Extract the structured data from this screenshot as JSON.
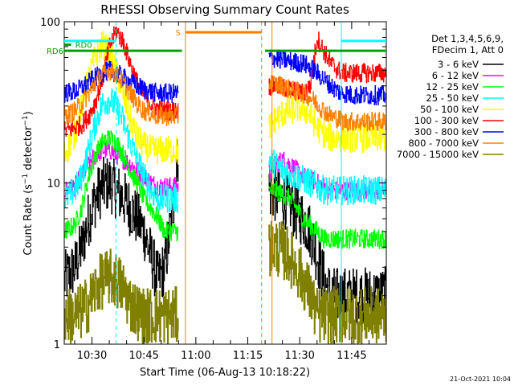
{
  "chart_data": {
    "type": "line",
    "title": "RHESSI Observing Summary Count Rates",
    "xlabel": "Start Time (06-Aug-13 10:18:22)",
    "ylabel": "Count Rate (s⁻¹ detector⁻¹)",
    "ylabel_parts": [
      "Count Rate (s",
      "−1",
      " detector",
      "−1",
      ")"
    ],
    "y_scale": "log",
    "xlim": [
      "10:22",
      "11:55"
    ],
    "ylim": [
      1,
      100
    ],
    "x_ticks": [
      "10:30",
      "10:45",
      "11:00",
      "11:15",
      "11:30",
      "11:45"
    ],
    "y_ticks": [
      "1",
      "10",
      "100"
    ],
    "grid": false,
    "legend_position": "right",
    "legend_header": [
      "Det 1,3,4,5,6,9,",
      "FDecim 1, Att 0"
    ],
    "timestamp": "21-Oct-2021 10:04",
    "data_gap": [
      "10:56",
      "11:20"
    ],
    "series": [
      {
        "name": "3 - 6 keV",
        "color": "#000000",
        "x": [
          "10:22",
          "10:25",
          "10:27",
          "10:29",
          "10:31",
          "10:33",
          "10:35",
          "10:37",
          "10:39",
          "10:41",
          "10:43",
          "10:45",
          "10:47",
          "10:49",
          "10:51",
          "10:53",
          "10:55",
          "11:21",
          "11:23",
          "11:25",
          "11:27",
          "11:29",
          "11:31",
          "11:33",
          "11:35",
          "11:37",
          "11:39",
          "11:41",
          "11:43",
          "11:45",
          "11:47",
          "11:49",
          "11:51",
          "11:53",
          "11:55"
        ],
        "y": [
          2.5,
          3,
          4,
          6,
          8,
          9.5,
          10,
          9,
          8,
          7,
          6,
          5,
          3.5,
          2.5,
          3,
          6,
          17,
          9,
          8.5,
          8,
          7.5,
          6.5,
          6,
          5,
          3.5,
          2.5,
          2,
          2,
          2,
          2,
          2,
          2,
          2,
          2,
          2
        ]
      },
      {
        "name": "6 - 12 keV",
        "color": "#ff00ff",
        "x": [
          "10:22",
          "10:25",
          "10:27",
          "10:29",
          "10:31",
          "10:33",
          "10:35",
          "10:37",
          "10:39",
          "10:41",
          "10:43",
          "10:45",
          "10:47",
          "10:49",
          "10:51",
          "10:53",
          "10:55",
          "11:21",
          "11:23",
          "11:25",
          "11:27",
          "11:29",
          "11:31",
          "11:33",
          "11:35",
          "11:37",
          "11:39",
          "11:41",
          "11:43",
          "11:45",
          "11:47",
          "11:49",
          "11:51",
          "11:53",
          "11:55"
        ],
        "y": [
          9,
          9.5,
          11,
          13,
          15,
          16,
          16,
          15,
          14,
          13,
          12,
          11,
          10,
          9.5,
          9.5,
          9.5,
          9.5,
          12,
          13,
          14,
          13,
          12,
          11,
          10.5,
          10,
          9.5,
          9,
          9,
          9,
          9,
          9,
          9,
          9,
          9,
          9
        ]
      },
      {
        "name": "12 - 25 keV",
        "color": "#00ff00",
        "x": [
          "10:22",
          "10:25",
          "10:27",
          "10:29",
          "10:31",
          "10:33",
          "10:35",
          "10:37",
          "10:39",
          "10:41",
          "10:43",
          "10:45",
          "10:47",
          "10:49",
          "10:51",
          "10:53",
          "10:55",
          "11:21",
          "11:23",
          "11:25",
          "11:27",
          "11:29",
          "11:31",
          "11:33",
          "11:35",
          "11:37",
          "11:39",
          "11:41",
          "11:43",
          "11:45",
          "11:47",
          "11:49",
          "11:51",
          "11:53",
          "11:55"
        ],
        "y": [
          5,
          5.5,
          7,
          11,
          15,
          18,
          19,
          18,
          15,
          12,
          10,
          8,
          7,
          6,
          5,
          5,
          5,
          9,
          9,
          8.5,
          8,
          7,
          6,
          5.5,
          5,
          4.5,
          4.5,
          4.5,
          4.5,
          4.5,
          4.5,
          4.5,
          4.5,
          4.5,
          4.5
        ]
      },
      {
        "name": "25 - 50 keV",
        "color": "#00ffff",
        "x": [
          "10:22",
          "10:25",
          "10:27",
          "10:29",
          "10:31",
          "10:33",
          "10:35",
          "10:37",
          "10:39",
          "10:41",
          "10:43",
          "10:45",
          "10:47",
          "10:49",
          "10:51",
          "10:53",
          "10:55",
          "11:21",
          "11:23",
          "11:25",
          "11:27",
          "11:29",
          "11:31",
          "11:33",
          "11:35",
          "11:37",
          "11:39",
          "11:41",
          "11:43",
          "11:45",
          "11:47",
          "11:49",
          "11:51",
          "11:53",
          "11:55"
        ],
        "y": [
          8,
          9,
          11,
          16,
          24,
          31,
          33,
          30,
          24,
          18,
          14,
          11,
          9,
          8,
          8,
          8,
          8,
          14,
          13,
          12,
          11.5,
          11,
          10.5,
          10,
          9.5,
          9,
          9,
          9,
          9,
          9,
          9,
          9,
          9,
          9,
          9
        ]
      },
      {
        "name": "50 - 100 keV",
        "color": "#ffff00",
        "x": [
          "10:22",
          "10:25",
          "10:27",
          "10:29",
          "10:31",
          "10:33",
          "10:35",
          "10:37",
          "10:39",
          "10:41",
          "10:43",
          "10:45",
          "10:47",
          "10:49",
          "10:51",
          "10:53",
          "10:55",
          "11:21",
          "11:23",
          "11:25",
          "11:27",
          "11:29",
          "11:31",
          "11:33",
          "11:35",
          "11:37",
          "11:39",
          "11:41",
          "11:43",
          "11:45",
          "11:47",
          "11:49",
          "11:51",
          "11:53",
          "11:55"
        ],
        "y": [
          15,
          20,
          30,
          45,
          62,
          72,
          65,
          50,
          35,
          25,
          19,
          17,
          16,
          16,
          16,
          16,
          16,
          22,
          25,
          27,
          28,
          29,
          29,
          26,
          22,
          20,
          19,
          19,
          19,
          19,
          19,
          19,
          19,
          19,
          19
        ]
      },
      {
        "name": "100 - 300 keV",
        "color": "#ff0000",
        "x": [
          "10:22",
          "10:25",
          "10:27",
          "10:29",
          "10:31",
          "10:33",
          "10:35",
          "10:37",
          "10:39",
          "10:41",
          "10:43",
          "10:45",
          "10:47",
          "10:49",
          "10:51",
          "10:53",
          "10:55",
          "11:21",
          "11:23",
          "11:25",
          "11:27",
          "11:29",
          "11:31",
          "11:33",
          "11:35",
          "11:37",
          "11:39",
          "11:41",
          "11:43",
          "11:45",
          "11:47",
          "11:49",
          "11:51",
          "11:53",
          "11:55"
        ],
        "y": [
          21,
          22,
          23,
          26,
          32,
          45,
          70,
          88,
          75,
          55,
          42,
          35,
          31,
          29,
          28,
          28,
          28,
          40,
          40,
          39,
          38,
          37,
          36,
          40,
          80,
          65,
          55,
          50,
          48,
          48,
          48,
          48,
          48,
          48,
          48
        ]
      },
      {
        "name": "300 - 800 keV",
        "color": "#0000ff",
        "x": [
          "10:22",
          "10:25",
          "10:27",
          "10:29",
          "10:31",
          "10:33",
          "10:35",
          "10:37",
          "10:39",
          "10:41",
          "10:43",
          "10:45",
          "10:47",
          "10:49",
          "10:51",
          "10:53",
          "10:55",
          "11:21",
          "11:23",
          "11:25",
          "11:27",
          "11:29",
          "11:31",
          "11:33",
          "11:35",
          "11:37",
          "11:39",
          "11:41",
          "11:43",
          "11:45",
          "11:47",
          "11:49",
          "11:51",
          "11:53",
          "11:55"
        ],
        "y": [
          36,
          37,
          39,
          42,
          45,
          48,
          50,
          48,
          45,
          42,
          40,
          38,
          37,
          36,
          36,
          36,
          36,
          60,
          59,
          58,
          57,
          56,
          55,
          52,
          48,
          44,
          40,
          37,
          36,
          35,
          35,
          35,
          35,
          35,
          35
        ]
      },
      {
        "name": "800 - 7000 keV",
        "color": "#ff8000",
        "x": [
          "10:22",
          "10:25",
          "10:27",
          "10:29",
          "10:31",
          "10:33",
          "10:35",
          "10:37",
          "10:39",
          "10:41",
          "10:43",
          "10:45",
          "10:47",
          "10:49",
          "10:51",
          "10:53",
          "10:55",
          "11:21",
          "11:23",
          "11:25",
          "11:27",
          "11:29",
          "11:31",
          "11:33",
          "11:35",
          "11:37",
          "11:39",
          "11:41",
          "11:43",
          "11:45",
          "11:47",
          "11:49",
          "11:51",
          "11:53",
          "11:55"
        ],
        "y": [
          26,
          28,
          31,
          36,
          42,
          47,
          50,
          47,
          42,
          36,
          31,
          28,
          27,
          26,
          26,
          26,
          26,
          42,
          41,
          40,
          38,
          37,
          36,
          34,
          31,
          28,
          26,
          25,
          24,
          24,
          24,
          24,
          24,
          24,
          24
        ]
      },
      {
        "name": "7000 - 15000 keV",
        "color": "#808000",
        "x": [
          "10:22",
          "10:25",
          "10:27",
          "10:29",
          "10:31",
          "10:33",
          "10:35",
          "10:37",
          "10:39",
          "10:41",
          "10:43",
          "10:45",
          "10:47",
          "10:49",
          "10:51",
          "10:53",
          "10:55",
          "11:21",
          "11:23",
          "11:25",
          "11:27",
          "11:29",
          "11:31",
          "11:33",
          "11:35",
          "11:37",
          "11:39",
          "11:41",
          "11:43",
          "11:45",
          "11:47",
          "11:49",
          "11:51",
          "11:53",
          "11:55"
        ],
        "y": [
          1.5,
          1.5,
          1.6,
          1.8,
          2.2,
          2.5,
          2.6,
          2.5,
          2.2,
          1.8,
          1.6,
          1.5,
          1.5,
          1.5,
          1.5,
          1.5,
          1.5,
          4,
          4,
          3.8,
          3.5,
          3,
          2.5,
          2,
          1.5,
          1.5,
          1.5,
          1.5,
          1.5,
          1.5,
          1.5,
          1.5,
          1.5,
          1.5,
          1.5
        ]
      }
    ],
    "flag_lines": [
      {
        "label": "RD0",
        "color": "#00a000",
        "y": 72,
        "segments": [
          [
            "10:22",
            "10:24"
          ]
        ]
      },
      {
        "label": "RD6",
        "color": "#00a000",
        "y": 66,
        "segments": [
          [
            "10:22",
            "10:56"
          ],
          [
            "11:20",
            "11:55"
          ]
        ]
      },
      {
        "label": "",
        "color": "#00ffff",
        "y": 76,
        "segments": [
          [
            "10:22",
            "10:37"
          ],
          [
            "11:42",
            "11:55"
          ]
        ]
      },
      {
        "label": "S",
        "color": "#ff8000",
        "y": 86,
        "segments": [
          [
            "10:57",
            "11:19"
          ]
        ]
      }
    ],
    "vertical_markers": [
      {
        "x": "10:37",
        "color": "#00ffff",
        "style": "dashed"
      },
      {
        "x": "10:57",
        "color": "#ff8000",
        "style": "solid"
      },
      {
        "x": "11:19",
        "color": "#ff8000",
        "style": "dashed"
      },
      {
        "x": "11:22",
        "color": "#ff8000",
        "style": "solid"
      },
      {
        "x": "11:42",
        "color": "#00ffff",
        "style": "solid"
      },
      {
        "x": "11:55",
        "color": "#00ffff",
        "style": "dashed"
      }
    ]
  }
}
